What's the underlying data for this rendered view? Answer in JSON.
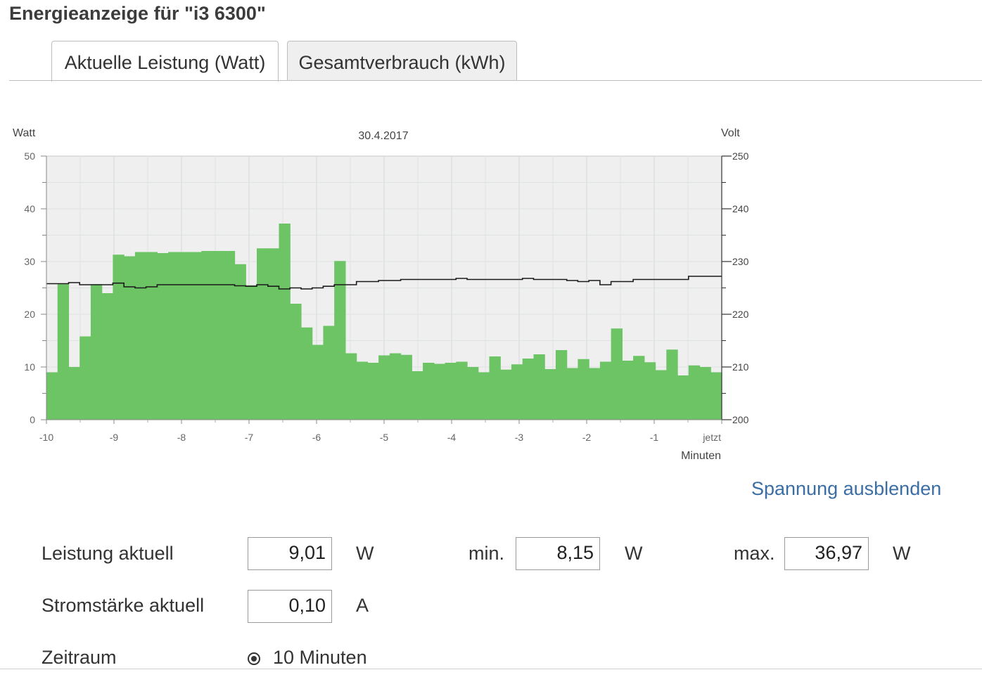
{
  "title": "Energieanzeige für \"i3 6300\"",
  "tabs": [
    {
      "label": "Aktuelle Leistung (Watt)",
      "active": true
    },
    {
      "label": "Gesamtverbrauch (kWh)",
      "active": false
    }
  ],
  "colors": {
    "bar": "#6cc464",
    "voltage_line": "#1a1a1a",
    "plot_bg": "#efefef",
    "link": "#3a6ea5"
  },
  "chart_data": {
    "type": "bar",
    "title": "30.4.2017",
    "ylabel": "Watt",
    "y2label": "Volt",
    "xlabel": "Minuten",
    "ylim": [
      0,
      50
    ],
    "y2lim": [
      200,
      250
    ],
    "xlim": [
      -10,
      0
    ],
    "y_ticks": [
      "0",
      "10",
      "20",
      "30",
      "40",
      "50"
    ],
    "y2_ticks": [
      "200",
      "210",
      "220",
      "230",
      "240",
      "250"
    ],
    "x_ticks": [
      "-10",
      "-9",
      "-8",
      "-7",
      "-6",
      "-5",
      "-4",
      "-3",
      "-2",
      "-1",
      "jetzt"
    ],
    "grid": true,
    "series": [
      {
        "kind": "bar",
        "values": [
          9.0,
          25.7,
          10.0,
          15.8,
          25.7,
          24.0,
          31.3,
          31.0,
          31.8,
          31.8,
          31.6,
          31.8,
          31.8,
          31.8,
          32.0,
          32.0,
          32.0,
          29.5,
          25.5,
          32.5,
          32.5,
          37.2,
          22.0,
          17.5,
          14.2,
          17.8,
          30.1,
          12.6,
          11.0,
          10.8,
          12.2,
          12.6,
          12.3,
          9.2,
          10.8,
          10.6,
          10.8,
          11.0,
          10.0,
          9.0,
          12.0,
          9.5,
          10.5,
          11.6,
          12.4,
          9.6,
          13.2,
          9.8,
          11.5,
          9.8,
          11.0,
          17.3,
          11.2,
          12.1,
          10.9,
          9.4,
          13.3,
          8.4,
          10.3,
          10.0,
          9.0
        ]
      },
      {
        "kind": "line",
        "axis": "right",
        "values": [
          225.8,
          225.8,
          226.0,
          225.6,
          225.6,
          225.6,
          225.9,
          225.2,
          225.0,
          225.2,
          225.6,
          225.6,
          225.6,
          225.6,
          225.6,
          225.6,
          225.6,
          225.4,
          225.3,
          225.6,
          225.3,
          224.8,
          225.0,
          224.8,
          225.0,
          225.3,
          225.6,
          225.6,
          226.2,
          226.2,
          226.4,
          226.4,
          226.6,
          226.6,
          226.6,
          226.6,
          226.6,
          226.8,
          226.6,
          226.6,
          226.6,
          226.6,
          226.6,
          226.8,
          226.6,
          226.6,
          226.6,
          226.4,
          226.2,
          226.4,
          225.6,
          226.2,
          226.2,
          226.6,
          226.6,
          226.6,
          226.6,
          226.6,
          227.2,
          227.2,
          227.2
        ]
      }
    ]
  },
  "toggle_link": "Spannung ausblenden",
  "stats": {
    "power_label": "Leistung aktuell",
    "power_value": "9,01",
    "power_unit": "W",
    "min_label": "min.",
    "min_value": "8,15",
    "min_unit": "W",
    "max_label": "max.",
    "max_value": "36,97",
    "max_unit": "W",
    "current_label": "Stromstärke aktuell",
    "current_value": "0,10",
    "current_unit": "A",
    "period_label": "Zeitraum",
    "period_option": "10 Minuten"
  }
}
